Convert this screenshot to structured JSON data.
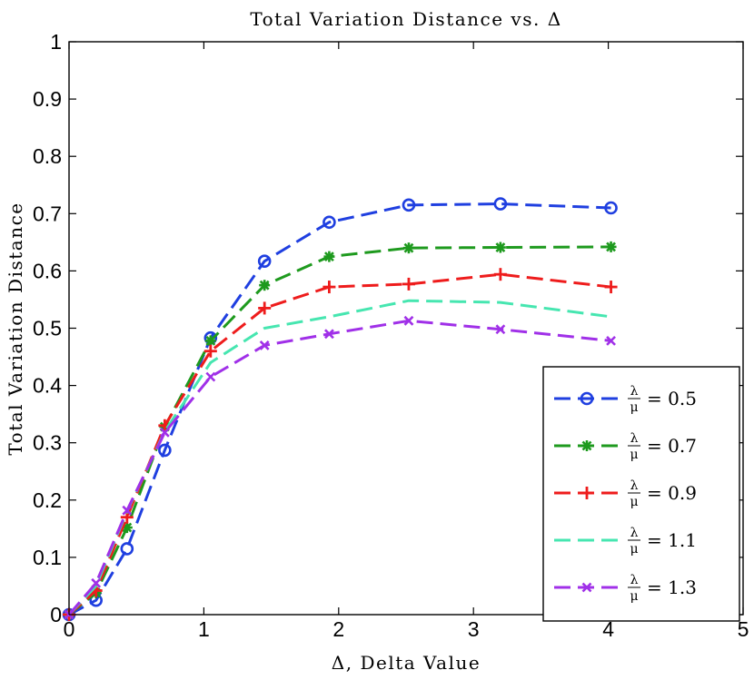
{
  "chart_data": {
    "type": "line",
    "title": "Total Variation Distance vs. Δ",
    "xlabel": "Δ, Delta Value",
    "ylabel": "Total Variation Distance",
    "xlim": [
      0,
      5
    ],
    "ylim": [
      0,
      1
    ],
    "xticks": [
      0,
      1,
      2,
      3,
      4,
      5
    ],
    "yticks": [
      0,
      0.1,
      0.2,
      0.3,
      0.4,
      0.5,
      0.6,
      0.7,
      0.8,
      0.9,
      1
    ],
    "xtick_labels": [
      "0",
      "1",
      "2",
      "3",
      "4",
      "5"
    ],
    "ytick_labels": [
      "0",
      "0.1",
      "0.2",
      "0.3",
      "0.4",
      "0.5",
      "0.6",
      "0.7",
      "0.8",
      "0.9",
      "1"
    ],
    "grid": false,
    "legend_position": "bottom-right",
    "series": [
      {
        "name": "λ/μ = 0.5",
        "legend_num": "λ",
        "legend_den": "μ",
        "legend_value": "= 0.5",
        "color": "#1f3fe0",
        "marker": "circle",
        "x": [
          0,
          0.2,
          0.43,
          0.71,
          1.05,
          1.45,
          1.93,
          2.52,
          3.2,
          4.02
        ],
        "values": [
          0,
          0.025,
          0.115,
          0.287,
          0.483,
          0.617,
          0.685,
          0.715,
          0.717,
          0.71
        ]
      },
      {
        "name": "λ/μ = 0.7",
        "legend_num": "λ",
        "legend_den": "μ",
        "legend_value": "= 0.7",
        "color": "#1e9a1e",
        "marker": "asterisk",
        "x": [
          0,
          0.2,
          0.43,
          0.71,
          1.05,
          1.45,
          1.93,
          2.52,
          3.2,
          4.02
        ],
        "values": [
          0,
          0.038,
          0.152,
          0.328,
          0.478,
          0.575,
          0.625,
          0.64,
          0.641,
          0.642
        ]
      },
      {
        "name": "λ/μ = 0.9",
        "legend_num": "λ",
        "legend_den": "μ",
        "legend_value": "= 0.9",
        "color": "#ee1c1c",
        "marker": "plus",
        "x": [
          0,
          0.2,
          0.43,
          0.71,
          1.05,
          1.45,
          1.93,
          2.52,
          3.2,
          4.02
        ],
        "values": [
          0,
          0.042,
          0.17,
          0.33,
          0.46,
          0.535,
          0.572,
          0.577,
          0.594,
          0.572
        ]
      },
      {
        "name": "λ/μ = 1.1",
        "legend_num": "λ",
        "legend_den": "μ",
        "legend_value": "= 1.1",
        "color": "#46e6b0",
        "marker": "none",
        "x": [
          0,
          0.2,
          0.43,
          0.71,
          1.05,
          1.45,
          1.93,
          2.52,
          3.2,
          4.02
        ],
        "values": [
          0,
          0.05,
          0.18,
          0.32,
          0.44,
          0.5,
          0.52,
          0.548,
          0.545,
          0.52
        ]
      },
      {
        "name": "λ/μ = 1.3",
        "legend_num": "λ",
        "legend_den": "μ",
        "legend_value": "= 1.3",
        "color": "#a030e8",
        "marker": "cross",
        "x": [
          0,
          0.2,
          0.43,
          0.71,
          1.05,
          1.45,
          1.93,
          2.52,
          3.2,
          4.02
        ],
        "values": [
          0,
          0.055,
          0.182,
          0.318,
          0.415,
          0.47,
          0.49,
          0.513,
          0.498,
          0.478
        ]
      }
    ]
  }
}
